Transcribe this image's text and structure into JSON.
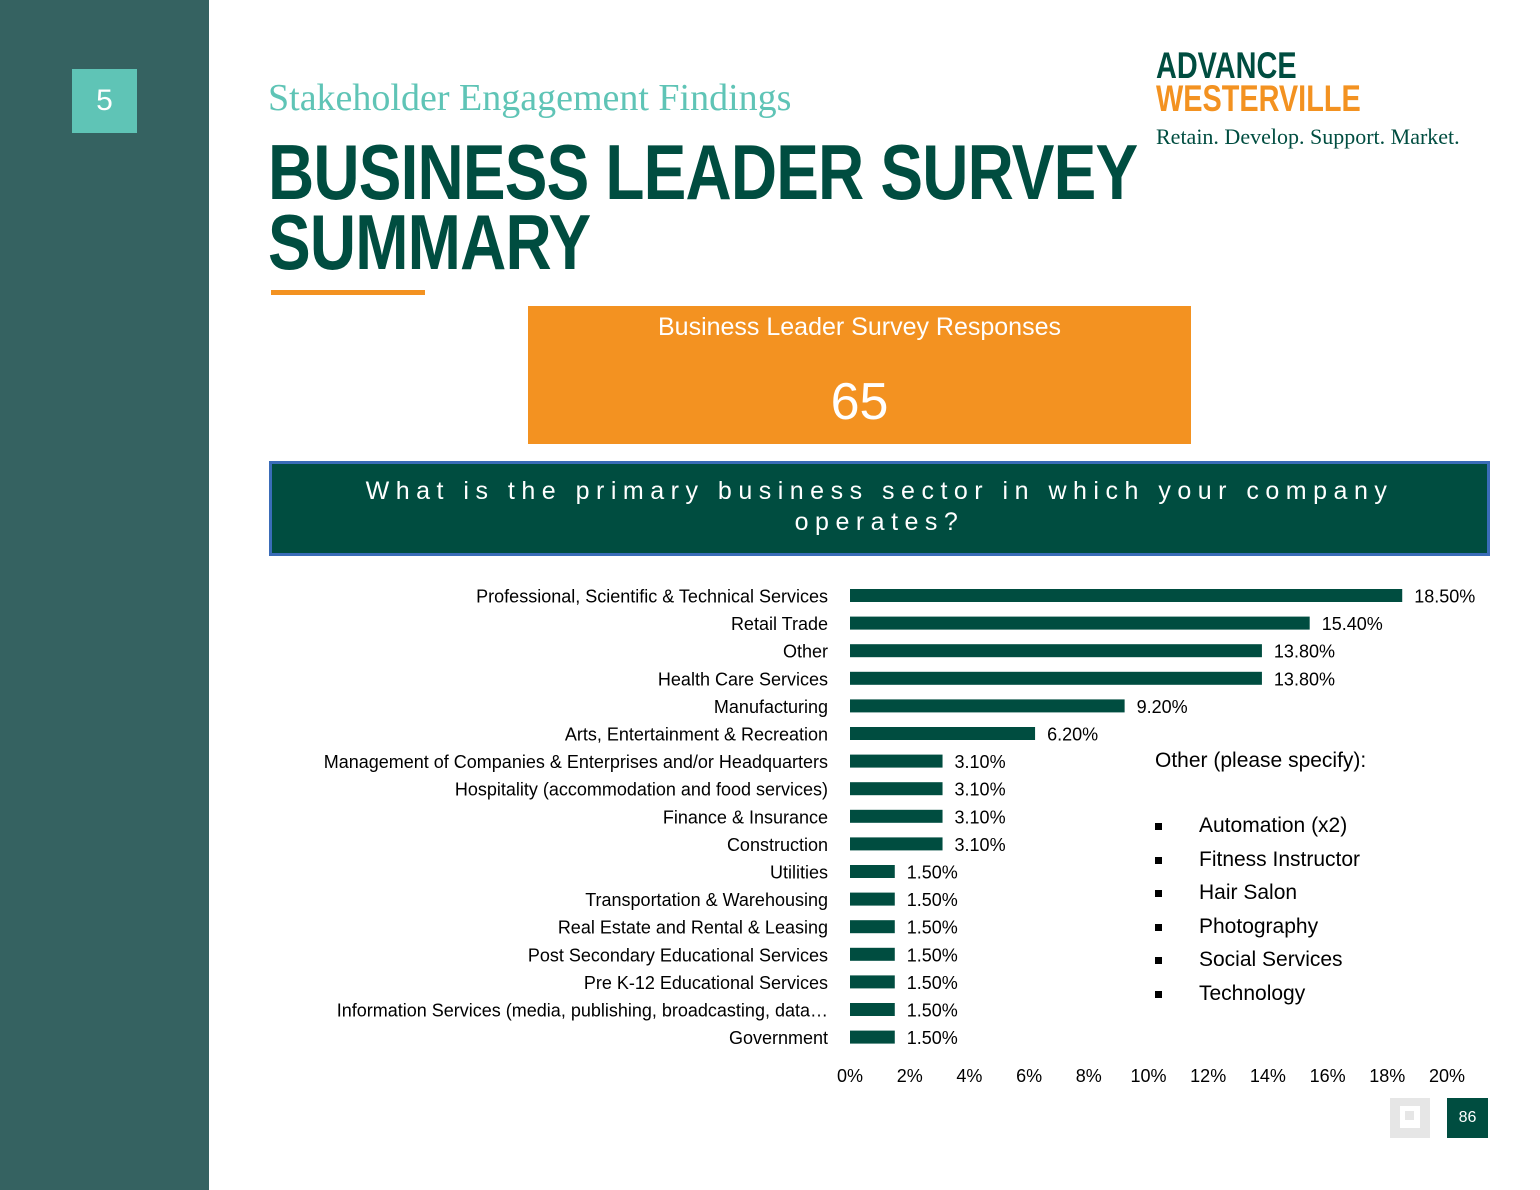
{
  "section_number": "5",
  "subtitle": "Stakeholder Engagement Findings",
  "title_line1": "BUSINESS LEADER SURVEY",
  "title_line2": "SUMMARY",
  "logo": {
    "line1": "ADVANCE",
    "line2": "WESTERVILLE",
    "tagline": "Retain. Develop. Support. Market."
  },
  "responses": {
    "label": "Business Leader Survey Responses",
    "value": "65"
  },
  "question": "What is the primary business sector in which your company operates?",
  "other": {
    "heading": "Other (please specify):",
    "items": [
      "Automation (x2)",
      "Fitness Instructor",
      "Hair Salon",
      "Photography",
      "Social Services",
      "Technology"
    ]
  },
  "page_number": "86",
  "colors": {
    "sidebar": "#356261",
    "teal_accent": "#5fc4b6",
    "dark_green": "#004d40",
    "orange": "#f39221",
    "bar": "#004d40"
  },
  "chart_data": {
    "type": "bar",
    "orientation": "horizontal",
    "categories": [
      "Professional, Scientific & Technical Services",
      "Retail Trade",
      "Other",
      "Health Care Services",
      "Manufacturing",
      "Arts, Entertainment & Recreation",
      "Management of Companies & Enterprises and/or Headquarters",
      "Hospitality (accommodation and food services)",
      "Finance & Insurance",
      "Construction",
      "Utilities",
      "Transportation & Warehousing",
      "Real Estate and Rental & Leasing",
      "Post Secondary Educational Services",
      "Pre K-12 Educational Services",
      "Information Services (media, publishing, broadcasting, data…",
      "Government"
    ],
    "values": [
      18.5,
      15.4,
      13.8,
      13.8,
      9.2,
      6.2,
      3.1,
      3.1,
      3.1,
      3.1,
      1.5,
      1.5,
      1.5,
      1.5,
      1.5,
      1.5,
      1.5
    ],
    "data_labels": [
      "18.50%",
      "15.40%",
      "13.80%",
      "13.80%",
      "9.20%",
      "6.20%",
      "3.10%",
      "3.10%",
      "3.10%",
      "3.10%",
      "1.50%",
      "1.50%",
      "1.50%",
      "1.50%",
      "1.50%",
      "1.50%",
      "1.50%"
    ],
    "xlim": [
      0,
      20
    ],
    "x_ticks": [
      "0%",
      "2%",
      "4%",
      "6%",
      "8%",
      "10%",
      "12%",
      "14%",
      "16%",
      "18%",
      "20%"
    ],
    "grid": false,
    "legend": "none"
  }
}
